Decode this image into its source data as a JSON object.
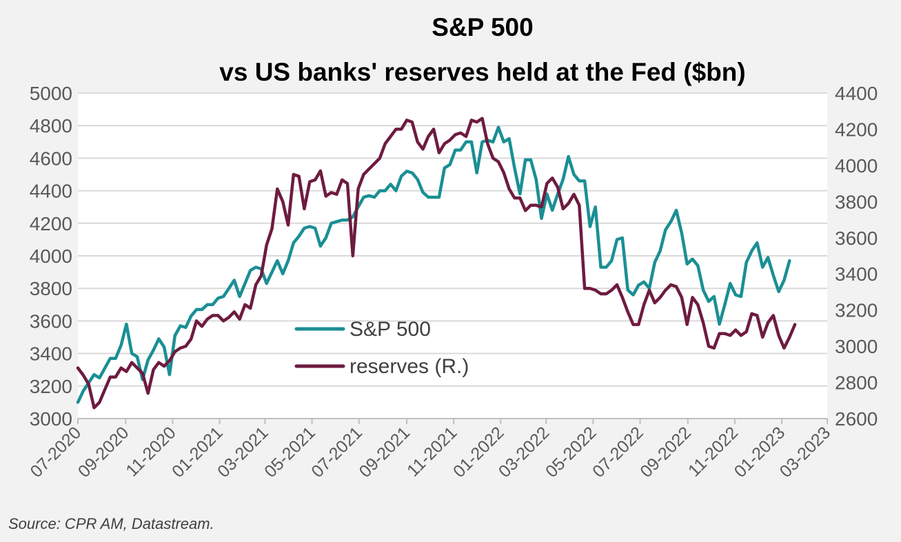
{
  "chart_data": {
    "type": "line",
    "title": "S&P 500",
    "subtitle": "vs US banks' reserves held at the Fed ($bn)",
    "source": "Source: CPR AM, Datastream.",
    "x_start": "2020-07-01",
    "x_end": "2023-03-01",
    "x_ticks": [
      "07-2020",
      "09-2020",
      "11-2020",
      "01-2021",
      "03-2021",
      "05-2021",
      "07-2021",
      "09-2021",
      "11-2021",
      "01-2022",
      "03-2022",
      "05-2022",
      "07-2022",
      "09-2022",
      "11-2022",
      "01-2023",
      "03-2023"
    ],
    "y_left": {
      "min": 3000,
      "max": 5000,
      "ticks": [
        3000,
        3200,
        3400,
        3600,
        3800,
        4000,
        4200,
        4400,
        4600,
        4800,
        5000
      ]
    },
    "y_right": {
      "min": 2600,
      "max": 4400,
      "ticks": [
        2600,
        2800,
        3000,
        3200,
        3400,
        3600,
        3800,
        4000,
        4200,
        4400
      ]
    },
    "grid": true,
    "legend_position": "center",
    "series": [
      {
        "name": "S&P 500",
        "axis": "left",
        "color": "#1a8f94",
        "points": [
          [
            "2020-07-01",
            3100
          ],
          [
            "2020-07-08",
            3170
          ],
          [
            "2020-07-15",
            3220
          ],
          [
            "2020-07-22",
            3270
          ],
          [
            "2020-07-29",
            3250
          ],
          [
            "2020-08-05",
            3310
          ],
          [
            "2020-08-12",
            3370
          ],
          [
            "2020-08-19",
            3370
          ],
          [
            "2020-08-26",
            3450
          ],
          [
            "2020-09-02",
            3580
          ],
          [
            "2020-09-09",
            3400
          ],
          [
            "2020-09-16",
            3380
          ],
          [
            "2020-09-23",
            3240
          ],
          [
            "2020-09-30",
            3360
          ],
          [
            "2020-10-07",
            3420
          ],
          [
            "2020-10-14",
            3490
          ],
          [
            "2020-10-21",
            3440
          ],
          [
            "2020-10-28",
            3270
          ],
          [
            "2020-11-04",
            3510
          ],
          [
            "2020-11-11",
            3570
          ],
          [
            "2020-11-18",
            3560
          ],
          [
            "2020-11-25",
            3630
          ],
          [
            "2020-12-02",
            3670
          ],
          [
            "2020-12-09",
            3670
          ],
          [
            "2020-12-16",
            3700
          ],
          [
            "2020-12-23",
            3700
          ],
          [
            "2020-12-30",
            3740
          ],
          [
            "2021-01-06",
            3750
          ],
          [
            "2021-01-13",
            3800
          ],
          [
            "2021-01-20",
            3850
          ],
          [
            "2021-01-27",
            3750
          ],
          [
            "2021-02-03",
            3830
          ],
          [
            "2021-02-10",
            3910
          ],
          [
            "2021-02-17",
            3930
          ],
          [
            "2021-02-24",
            3920
          ],
          [
            "2021-03-03",
            3830
          ],
          [
            "2021-03-10",
            3900
          ],
          [
            "2021-03-17",
            3970
          ],
          [
            "2021-03-24",
            3890
          ],
          [
            "2021-03-31",
            3970
          ],
          [
            "2021-04-07",
            4080
          ],
          [
            "2021-04-14",
            4120
          ],
          [
            "2021-04-21",
            4170
          ],
          [
            "2021-04-28",
            4180
          ],
          [
            "2021-05-05",
            4170
          ],
          [
            "2021-05-12",
            4060
          ],
          [
            "2021-05-19",
            4110
          ],
          [
            "2021-05-26",
            4200
          ],
          [
            "2021-06-02",
            4210
          ],
          [
            "2021-06-09",
            4220
          ],
          [
            "2021-06-16",
            4220
          ],
          [
            "2021-06-23",
            4240
          ],
          [
            "2021-06-30",
            4300
          ],
          [
            "2021-07-07",
            4360
          ],
          [
            "2021-07-14",
            4370
          ],
          [
            "2021-07-21",
            4360
          ],
          [
            "2021-07-28",
            4400
          ],
          [
            "2021-08-04",
            4400
          ],
          [
            "2021-08-11",
            4440
          ],
          [
            "2021-08-18",
            4400
          ],
          [
            "2021-08-25",
            4490
          ],
          [
            "2021-09-01",
            4520
          ],
          [
            "2021-09-08",
            4510
          ],
          [
            "2021-09-15",
            4470
          ],
          [
            "2021-09-22",
            4390
          ],
          [
            "2021-09-29",
            4360
          ],
          [
            "2021-10-06",
            4360
          ],
          [
            "2021-10-13",
            4360
          ],
          [
            "2021-10-20",
            4540
          ],
          [
            "2021-10-27",
            4560
          ],
          [
            "2021-11-03",
            4650
          ],
          [
            "2021-11-10",
            4650
          ],
          [
            "2021-11-17",
            4700
          ],
          [
            "2021-11-24",
            4700
          ],
          [
            "2021-12-01",
            4510
          ],
          [
            "2021-12-08",
            4700
          ],
          [
            "2021-12-15",
            4710
          ],
          [
            "2021-12-22",
            4700
          ],
          [
            "2021-12-29",
            4790
          ],
          [
            "2022-01-05",
            4700
          ],
          [
            "2022-01-12",
            4720
          ],
          [
            "2022-01-19",
            4540
          ],
          [
            "2022-01-26",
            4380
          ],
          [
            "2022-02-02",
            4590
          ],
          [
            "2022-02-09",
            4590
          ],
          [
            "2022-02-16",
            4470
          ],
          [
            "2022-02-23",
            4230
          ],
          [
            "2022-03-02",
            4380
          ],
          [
            "2022-03-09",
            4280
          ],
          [
            "2022-03-16",
            4380
          ],
          [
            "2022-03-23",
            4470
          ],
          [
            "2022-03-30",
            4610
          ],
          [
            "2022-04-06",
            4500
          ],
          [
            "2022-04-13",
            4460
          ],
          [
            "2022-04-20",
            4460
          ],
          [
            "2022-04-27",
            4180
          ],
          [
            "2022-05-04",
            4300
          ],
          [
            "2022-05-11",
            3930
          ],
          [
            "2022-05-18",
            3930
          ],
          [
            "2022-05-25",
            3970
          ],
          [
            "2022-06-01",
            4100
          ],
          [
            "2022-06-08",
            4110
          ],
          [
            "2022-06-15",
            3790
          ],
          [
            "2022-06-22",
            3760
          ],
          [
            "2022-06-29",
            3820
          ],
          [
            "2022-07-06",
            3840
          ],
          [
            "2022-07-13",
            3800
          ],
          [
            "2022-07-20",
            3960
          ],
          [
            "2022-07-27",
            4030
          ],
          [
            "2022-08-03",
            4160
          ],
          [
            "2022-08-10",
            4210
          ],
          [
            "2022-08-17",
            4280
          ],
          [
            "2022-08-24",
            4140
          ],
          [
            "2022-08-31",
            3950
          ],
          [
            "2022-09-07",
            3980
          ],
          [
            "2022-09-14",
            3940
          ],
          [
            "2022-09-21",
            3790
          ],
          [
            "2022-09-28",
            3720
          ],
          [
            "2022-10-05",
            3750
          ],
          [
            "2022-10-12",
            3580
          ],
          [
            "2022-10-19",
            3700
          ],
          [
            "2022-10-26",
            3830
          ],
          [
            "2022-11-02",
            3760
          ],
          [
            "2022-11-09",
            3750
          ],
          [
            "2022-11-16",
            3960
          ],
          [
            "2022-11-23",
            4030
          ],
          [
            "2022-11-30",
            4080
          ],
          [
            "2022-12-07",
            3930
          ],
          [
            "2022-12-14",
            3990
          ],
          [
            "2022-12-21",
            3880
          ],
          [
            "2022-12-28",
            3780
          ],
          [
            "2023-01-04",
            3850
          ],
          [
            "2023-01-11",
            3970
          ]
        ]
      },
      {
        "name": "reserves (R.)",
        "axis": "right",
        "color": "#6e1b40",
        "points": [
          [
            "2020-07-01",
            2880
          ],
          [
            "2020-07-08",
            2840
          ],
          [
            "2020-07-15",
            2790
          ],
          [
            "2020-07-22",
            2660
          ],
          [
            "2020-07-29",
            2690
          ],
          [
            "2020-08-05",
            2760
          ],
          [
            "2020-08-12",
            2830
          ],
          [
            "2020-08-19",
            2830
          ],
          [
            "2020-08-26",
            2880
          ],
          [
            "2020-09-02",
            2860
          ],
          [
            "2020-09-09",
            2910
          ],
          [
            "2020-09-16",
            2880
          ],
          [
            "2020-09-23",
            2850
          ],
          [
            "2020-09-30",
            2740
          ],
          [
            "2020-10-07",
            2870
          ],
          [
            "2020-10-14",
            2910
          ],
          [
            "2020-10-21",
            2890
          ],
          [
            "2020-10-28",
            2920
          ],
          [
            "2020-11-04",
            2970
          ],
          [
            "2020-11-11",
            2990
          ],
          [
            "2020-11-18",
            3000
          ],
          [
            "2020-11-25",
            3040
          ],
          [
            "2020-12-02",
            3140
          ],
          [
            "2020-12-09",
            3110
          ],
          [
            "2020-12-16",
            3150
          ],
          [
            "2020-12-23",
            3170
          ],
          [
            "2020-12-30",
            3170
          ],
          [
            "2021-01-06",
            3140
          ],
          [
            "2021-01-13",
            3160
          ],
          [
            "2021-01-20",
            3190
          ],
          [
            "2021-01-27",
            3150
          ],
          [
            "2021-02-03",
            3230
          ],
          [
            "2021-02-10",
            3210
          ],
          [
            "2021-02-17",
            3340
          ],
          [
            "2021-02-24",
            3390
          ],
          [
            "2021-03-03",
            3560
          ],
          [
            "2021-03-10",
            3650
          ],
          [
            "2021-03-17",
            3870
          ],
          [
            "2021-03-24",
            3800
          ],
          [
            "2021-03-31",
            3670
          ],
          [
            "2021-04-07",
            3950
          ],
          [
            "2021-04-14",
            3940
          ],
          [
            "2021-04-21",
            3760
          ],
          [
            "2021-04-28",
            3910
          ],
          [
            "2021-05-05",
            3920
          ],
          [
            "2021-05-12",
            3970
          ],
          [
            "2021-05-19",
            3830
          ],
          [
            "2021-05-26",
            3850
          ],
          [
            "2021-06-02",
            3840
          ],
          [
            "2021-06-09",
            3920
          ],
          [
            "2021-06-16",
            3900
          ],
          [
            "2021-06-23",
            3500
          ],
          [
            "2021-06-30",
            3870
          ],
          [
            "2021-07-07",
            3950
          ],
          [
            "2021-07-14",
            3980
          ],
          [
            "2021-07-21",
            4010
          ],
          [
            "2021-07-28",
            4040
          ],
          [
            "2021-08-04",
            4120
          ],
          [
            "2021-08-11",
            4160
          ],
          [
            "2021-08-18",
            4200
          ],
          [
            "2021-08-25",
            4200
          ],
          [
            "2021-09-01",
            4250
          ],
          [
            "2021-09-08",
            4240
          ],
          [
            "2021-09-15",
            4130
          ],
          [
            "2021-09-22",
            4090
          ],
          [
            "2021-09-29",
            4160
          ],
          [
            "2021-10-06",
            4200
          ],
          [
            "2021-10-13",
            4070
          ],
          [
            "2021-10-20",
            4120
          ],
          [
            "2021-10-27",
            4140
          ],
          [
            "2021-11-03",
            4170
          ],
          [
            "2021-11-10",
            4180
          ],
          [
            "2021-11-17",
            4160
          ],
          [
            "2021-11-24",
            4250
          ],
          [
            "2021-12-01",
            4240
          ],
          [
            "2021-12-08",
            4260
          ],
          [
            "2021-12-15",
            4120
          ],
          [
            "2021-12-22",
            4040
          ],
          [
            "2021-12-29",
            4020
          ],
          [
            "2022-01-05",
            3960
          ],
          [
            "2022-01-12",
            3870
          ],
          [
            "2022-01-19",
            3820
          ],
          [
            "2022-01-26",
            3820
          ],
          [
            "2022-02-02",
            3750
          ],
          [
            "2022-02-09",
            3780
          ],
          [
            "2022-02-16",
            3780
          ],
          [
            "2022-02-23",
            3770
          ],
          [
            "2022-03-02",
            3900
          ],
          [
            "2022-03-09",
            3930
          ],
          [
            "2022-03-16",
            3880
          ],
          [
            "2022-03-23",
            3760
          ],
          [
            "2022-03-30",
            3790
          ],
          [
            "2022-04-06",
            3840
          ],
          [
            "2022-04-13",
            3780
          ],
          [
            "2022-04-20",
            3320
          ],
          [
            "2022-04-27",
            3320
          ],
          [
            "2022-05-04",
            3310
          ],
          [
            "2022-05-11",
            3290
          ],
          [
            "2022-05-18",
            3290
          ],
          [
            "2022-05-25",
            3310
          ],
          [
            "2022-06-01",
            3340
          ],
          [
            "2022-06-08",
            3270
          ],
          [
            "2022-06-15",
            3190
          ],
          [
            "2022-06-22",
            3120
          ],
          [
            "2022-06-29",
            3120
          ],
          [
            "2022-07-06",
            3230
          ],
          [
            "2022-07-13",
            3310
          ],
          [
            "2022-07-20",
            3240
          ],
          [
            "2022-07-27",
            3270
          ],
          [
            "2022-08-03",
            3310
          ],
          [
            "2022-08-10",
            3340
          ],
          [
            "2022-08-17",
            3330
          ],
          [
            "2022-08-24",
            3270
          ],
          [
            "2022-08-31",
            3120
          ],
          [
            "2022-09-07",
            3270
          ],
          [
            "2022-09-14",
            3230
          ],
          [
            "2022-09-21",
            3130
          ],
          [
            "2022-09-28",
            3000
          ],
          [
            "2022-10-05",
            2990
          ],
          [
            "2022-10-12",
            3070
          ],
          [
            "2022-10-19",
            3070
          ],
          [
            "2022-10-26",
            3060
          ],
          [
            "2022-11-02",
            3090
          ],
          [
            "2022-11-09",
            3060
          ],
          [
            "2022-11-16",
            3080
          ],
          [
            "2022-11-23",
            3180
          ],
          [
            "2022-11-30",
            3170
          ],
          [
            "2022-12-07",
            3050
          ],
          [
            "2022-12-14",
            3130
          ],
          [
            "2022-12-21",
            3170
          ],
          [
            "2022-12-28",
            3060
          ],
          [
            "2023-01-04",
            2990
          ],
          [
            "2023-01-11",
            3050
          ],
          [
            "2023-01-18",
            3120
          ]
        ]
      }
    ]
  }
}
